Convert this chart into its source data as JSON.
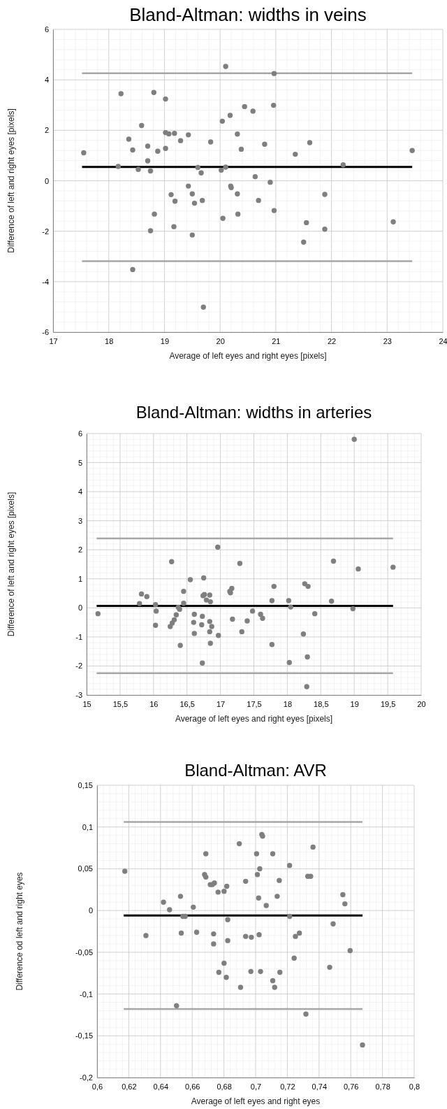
{
  "chart_data": [
    {
      "type": "scatter",
      "title": "Bland-Altman: widths in veins",
      "xlabel": "Average of left eyes and right eyes [pixels]",
      "ylabel": "Difference of left and right eyes [pixels]",
      "xlim": [
        17,
        24
      ],
      "xticks": [
        17,
        18,
        19,
        20,
        21,
        22,
        23,
        24
      ],
      "ylim": [
        -6,
        6
      ],
      "yticks": [
        -6,
        -4,
        -2,
        0,
        2,
        4,
        6
      ],
      "grid": true,
      "marker": "circle",
      "series": [
        {
          "color": "#7f7f7f",
          "x": [
            17.55,
            18.22,
            18.81,
            19.02,
            20.1,
            20.97,
            20.96,
            20.44,
            20.59,
            20.18,
            20.04,
            18.59,
            19.02,
            19.08,
            19.18,
            19.43,
            20.31,
            18.36,
            19.29,
            19.83,
            20.8,
            21.61,
            18.7,
            18.43,
            18.88,
            19.02,
            20.38,
            21.35,
            23.45,
            18.7,
            18.17,
            18.53,
            18.75,
            19.6,
            19.66,
            20.02,
            20.1,
            22.21,
            20.63,
            20.9,
            19.43,
            20.19,
            20.2,
            19.12,
            19.5,
            20.31,
            21.88,
            19.19,
            19.54,
            19.68,
            20.69,
            20.97,
            18.82,
            20.32,
            20.05,
            21.55,
            23.11,
            19.17,
            18.75,
            21.88,
            19.5,
            21.5,
            18.43,
            19.7
          ],
          "values": [
            1.11,
            3.45,
            3.5,
            3.24,
            4.53,
            4.25,
            2.99,
            2.94,
            2.76,
            2.59,
            2.36,
            2.19,
            1.91,
            1.86,
            1.88,
            1.82,
            1.85,
            1.65,
            1.59,
            1.54,
            1.45,
            1.51,
            1.37,
            1.22,
            1.17,
            1.28,
            1.25,
            1.05,
            1.2,
            0.79,
            0.57,
            0.45,
            0.39,
            0.53,
            0.31,
            0.42,
            0.54,
            0.63,
            0.16,
            -0.06,
            -0.21,
            -0.21,
            -0.27,
            -0.55,
            -0.52,
            -0.52,
            -0.54,
            -0.81,
            -0.89,
            -0.78,
            -0.78,
            -1.18,
            -1.32,
            -1.32,
            -1.49,
            -1.66,
            -1.63,
            -1.82,
            -1.98,
            -1.92,
            -2.15,
            -2.43,
            -3.52,
            -5.01
          ]
        },
        {
          "type": "line",
          "color": "#a6a6a6",
          "marker": "none",
          "x": [
            17.52,
            23.45
          ],
          "values": [
            4.26,
            4.26
          ]
        },
        {
          "type": "line",
          "color": "#000000",
          "marker": "none",
          "x": [
            17.52,
            23.45
          ],
          "values": [
            0.55,
            0.55
          ]
        },
        {
          "type": "line",
          "color": "#a6a6a6",
          "marker": "none",
          "x": [
            17.52,
            23.45
          ],
          "values": [
            -3.19,
            -3.19
          ]
        }
      ]
    },
    {
      "type": "scatter",
      "title": "Bland-Altman: widths in arteries",
      "xlabel": "Average of left eyes and right eyes [pixels]",
      "ylabel": "Difference of left and right eyes [pixels]",
      "xlim": [
        15,
        20
      ],
      "xticks": [
        15,
        {
          "value": 15.5,
          "label": "15,5"
        },
        16,
        {
          "value": 16.5,
          "label": "16,5"
        },
        17,
        {
          "value": 17.5,
          "label": "17,5"
        },
        18,
        {
          "value": 18.5,
          "label": "18,5"
        },
        19,
        {
          "value": 19.5,
          "label": "19,5"
        },
        20
      ],
      "ylim": [
        -3,
        6
      ],
      "yticks": [
        -3,
        -2,
        -1,
        0,
        1,
        2,
        3,
        4,
        5,
        6
      ],
      "grid": true,
      "marker": "circle",
      "series": [
        {
          "color": "#7f7f7f",
          "x": [
            15.17,
            15.79,
            15.82,
            15.9,
            16.03,
            16.04,
            16.03,
            16.27,
            16.25,
            16.28,
            16.31,
            16.34,
            16.37,
            16.39,
            16.4,
            16.45,
            16.45,
            16.55,
            16.61,
            16.6,
            16.61,
            16.75,
            16.74,
            16.76,
            16.79,
            16.73,
            16.72,
            16.73,
            16.84,
            16.85,
            16.84,
            16.87,
            16.84,
            16.85,
            16.96,
            16.97,
            17.14,
            17.17,
            17.15,
            17.18,
            17.29,
            17.32,
            17.4,
            17.48,
            17.6,
            17.63,
            17.77,
            17.8,
            17.77,
            18.02,
            18.05,
            18.03,
            18.24,
            18.26,
            18.31,
            18.3,
            18.29,
            18.41,
            18.66,
            18.69,
            18.98,
            19.0,
            19.06,
            19.58
          ],
          "values": [
            -0.2,
            0.15,
            0.48,
            0.39,
            0.11,
            -0.11,
            -0.6,
            1.59,
            -0.64,
            -0.52,
            -0.41,
            -0.24,
            0.02,
            -0.05,
            -1.29,
            0.57,
            0.16,
            0.97,
            -0.22,
            -0.5,
            -0.88,
            1.03,
            0.42,
            0.46,
            0.27,
            -0.29,
            -0.58,
            -1.9,
            0.44,
            0.21,
            -0.47,
            -0.64,
            -0.82,
            -1.22,
            2.09,
            -0.95,
            0.57,
            0.67,
            0.52,
            -0.39,
            1.53,
            -0.82,
            -0.45,
            -0.11,
            -0.22,
            -0.36,
            0.25,
            0.74,
            -1.26,
            0.25,
            0.03,
            -1.88,
            -0.9,
            0.83,
            0.74,
            -1.69,
            -2.71,
            -0.2,
            0.23,
            1.61,
            -0.03,
            5.8,
            1.34,
            1.4
          ]
        },
        {
          "type": "line",
          "color": "#a6a6a6",
          "marker": "none",
          "x": [
            15.15,
            19.58
          ],
          "values": [
            2.39,
            2.39
          ]
        },
        {
          "type": "line",
          "color": "#000000",
          "marker": "none",
          "x": [
            15.15,
            19.58
          ],
          "values": [
            0.07,
            0.07
          ]
        },
        {
          "type": "line",
          "color": "#a6a6a6",
          "marker": "none",
          "x": [
            15.15,
            19.58
          ],
          "values": [
            -2.25,
            -2.25
          ]
        }
      ]
    },
    {
      "type": "scatter",
      "title": "Bland-Altman: AVR",
      "xlabel": "Average of left eyes and right eyes",
      "ylabel": "Difference od left and right eyes",
      "xlim": [
        0.6,
        0.8
      ],
      "xticks": [
        {
          "value": 0.6,
          "label": "0,6"
        },
        {
          "value": 0.62,
          "label": "0,62"
        },
        {
          "value": 0.64,
          "label": "0,64"
        },
        {
          "value": 0.66,
          "label": "0,66"
        },
        {
          "value": 0.68,
          "label": "0,68"
        },
        {
          "value": 0.7,
          "label": "0,7"
        },
        {
          "value": 0.72,
          "label": "0,72"
        },
        {
          "value": 0.74,
          "label": "0,74"
        },
        {
          "value": 0.76,
          "label": "0,76"
        },
        {
          "value": 0.78,
          "label": "0,78"
        },
        {
          "value": 0.8,
          "label": "0,8"
        }
      ],
      "ylim": [
        -0.2,
        0.15
      ],
      "yticks": [
        {
          "value": -0.2,
          "label": "-0,2"
        },
        {
          "value": -0.15,
          "label": "-0,15"
        },
        {
          "value": -0.1,
          "label": "-0,1"
        },
        {
          "value": -0.05,
          "label": "-0,05"
        },
        0,
        {
          "value": 0.05,
          "label": "0,05"
        },
        {
          "value": 0.1,
          "label": "0,1"
        },
        {
          "value": 0.15,
          "label": "0,15"
        }
      ],
      "grid": true,
      "marker": "circle",
      "series": [
        {
          "color": "#7f7f7f",
          "x": [
            0.6175,
            0.6308,
            0.6419,
            0.6457,
            0.6526,
            0.6531,
            0.6541,
            0.6556,
            0.6501,
            0.6607,
            0.6628,
            0.6678,
            0.6686,
            0.6686,
            0.6714,
            0.6727,
            0.674,
            0.6735,
            0.6735,
            0.6763,
            0.6768,
            0.6801,
            0.6801,
            0.6818,
            0.6824,
            0.6824,
            0.6815,
            0.6897,
            0.6905,
            0.6937,
            0.6937,
            0.6973,
            0.697,
            0.7006,
            0.7011,
            0.7019,
            0.7026,
            0.7022,
            0.7031,
            0.7039,
            0.7044,
            0.7067,
            0.7108,
            0.7108,
            0.712,
            0.7136,
            0.7149,
            0.7153,
            0.7214,
            0.7215,
            0.7243,
            0.7251,
            0.7276,
            0.7317,
            0.7329,
            0.7347,
            0.7362,
            0.7467,
            0.7489,
            0.755,
            0.7563,
            0.7596,
            0.7674
          ],
          "values": [
            0.047,
            -0.03,
            0.01,
            0.001,
            0.017,
            -0.027,
            -0.007,
            -0.007,
            -0.114,
            0.004,
            -0.026,
            0.043,
            0.04,
            0.068,
            0.031,
            0.031,
            0.033,
            -0.028,
            -0.04,
            0.022,
            -0.074,
            0.023,
            -0.063,
            0.029,
            -0.011,
            -0.036,
            -0.08,
            0.08,
            -0.092,
            0.035,
            -0.031,
            -0.032,
            -0.073,
            0.068,
            0.043,
            0.015,
            0.05,
            -0.029,
            -0.073,
            0.091,
            0.089,
            0.006,
            0.068,
            -0.084,
            -0.092,
            0.017,
            0.036,
            -0.074,
            0.054,
            -0.007,
            -0.057,
            -0.031,
            -0.027,
            -0.124,
            0.041,
            0.041,
            0.076,
            -0.068,
            -0.016,
            0.019,
            0.008,
            -0.048,
            -0.161
          ]
        },
        {
          "type": "line",
          "color": "#a6a6a6",
          "marker": "none",
          "x": [
            0.6168,
            0.7674
          ],
          "values": [
            0.106,
            0.106
          ]
        },
        {
          "type": "line",
          "color": "#000000",
          "marker": "none",
          "x": [
            0.6168,
            0.7674
          ],
          "values": [
            -0.006,
            -0.006
          ]
        },
        {
          "type": "line",
          "color": "#a6a6a6",
          "marker": "none",
          "x": [
            0.6168,
            0.7674
          ],
          "values": [
            -0.118,
            -0.118
          ]
        }
      ]
    }
  ]
}
